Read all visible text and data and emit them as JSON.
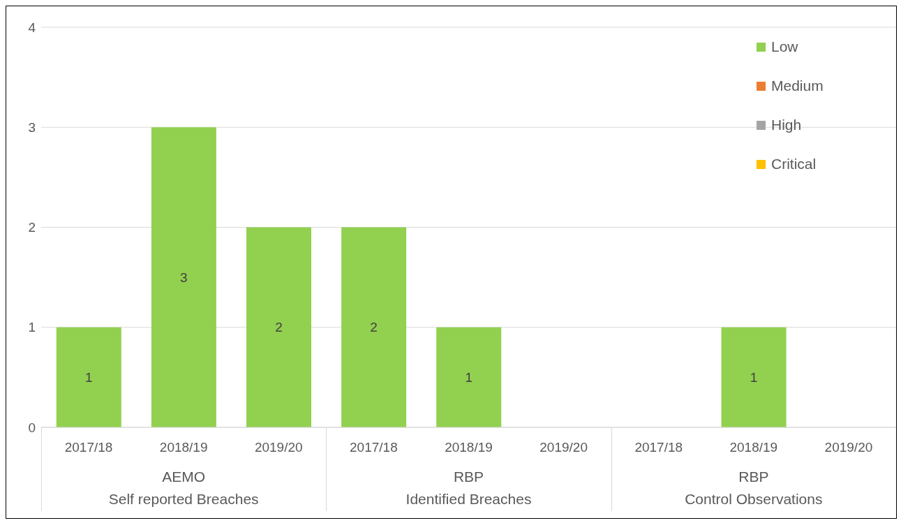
{
  "chart_data": {
    "type": "bar",
    "stacked": true,
    "categories": [
      "2017/18",
      "2018/19",
      "2019/20",
      "2017/18",
      "2018/19",
      "2019/20",
      "2017/18",
      "2018/19",
      "2019/20"
    ],
    "annotations": [
      "AEMO\nSelf reported Breaches",
      "RBP\nIdentified Breaches",
      "RBP\nControl Observations"
    ],
    "series": [
      {
        "name": "Low",
        "color": "#92d050",
        "values": [
          1,
          3,
          2,
          2,
          1,
          null,
          null,
          1,
          null
        ],
        "value_labels": [
          "1",
          "3",
          "2",
          "2",
          "1",
          null,
          null,
          "1",
          null
        ]
      },
      {
        "name": "Medium",
        "color": "#ed7d31",
        "values": [
          null,
          null,
          null,
          null,
          null,
          null,
          null,
          null,
          null
        ]
      },
      {
        "name": "High",
        "color": "#a5a5a5",
        "values": [
          null,
          null,
          null,
          null,
          null,
          null,
          null,
          null,
          null
        ]
      },
      {
        "name": "Critical",
        "color": "#ffc000",
        "values": [
          null,
          null,
          null,
          null,
          null,
          null,
          null,
          null,
          null
        ]
      }
    ],
    "ylim": [
      0,
      4
    ],
    "yticks": [
      0,
      1,
      2,
      3,
      4
    ],
    "grid": "y",
    "legend": "top right"
  }
}
